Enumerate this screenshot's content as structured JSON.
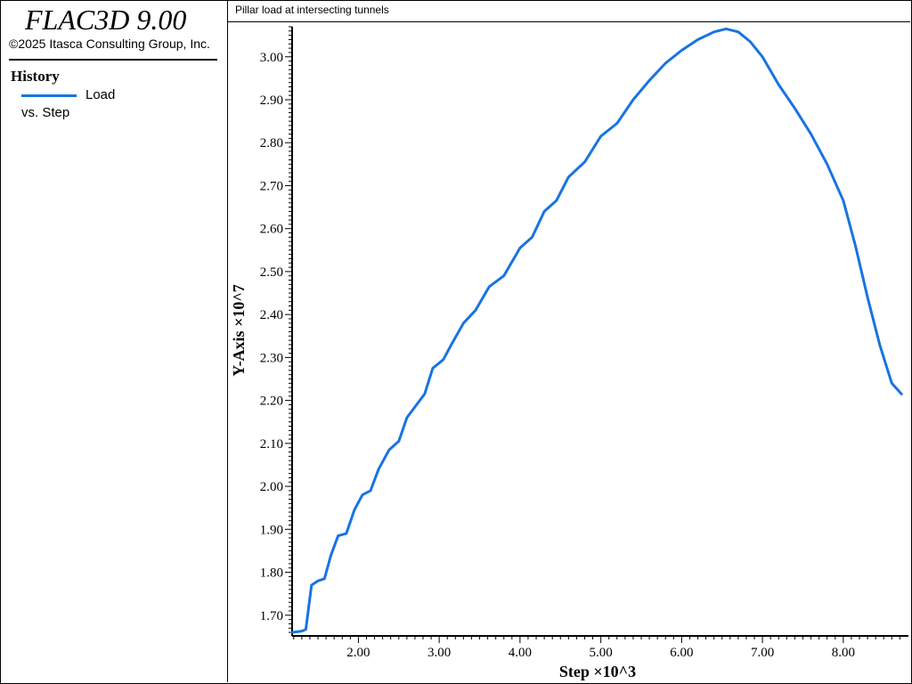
{
  "app": {
    "title": "FLAC3D 9.00",
    "copyright": "©2025 Itasca Consulting Group, Inc."
  },
  "legend": {
    "heading": "History",
    "series_label": "Load",
    "x_label": "vs. Step",
    "color": "#1874e0"
  },
  "chart_data": {
    "type": "line",
    "title": "Pillar load at intersecting tunnels",
    "xlabel": "Step ×10^3",
    "ylabel": "Y-Axis ×10^7",
    "xlim": [
      1.18,
      8.74
    ],
    "ylim": [
      1.656,
      3.07
    ],
    "x_ticks": [
      "2.00",
      "3.00",
      "4.00",
      "5.00",
      "6.00",
      "7.00",
      "8.00"
    ],
    "y_ticks": [
      "1.70",
      "1.80",
      "1.90",
      "2.00",
      "2.10",
      "2.20",
      "2.30",
      "2.40",
      "2.50",
      "2.60",
      "2.70",
      "2.80",
      "2.90",
      "3.00"
    ],
    "grid": false,
    "series": [
      {
        "name": "Load",
        "color": "#1874e0",
        "x": [
          1.18,
          1.3,
          1.35,
          1.42,
          1.5,
          1.58,
          1.66,
          1.75,
          1.85,
          1.95,
          2.05,
          2.15,
          2.25,
          2.38,
          2.5,
          2.6,
          2.7,
          2.82,
          2.92,
          3.05,
          3.15,
          3.3,
          3.45,
          3.62,
          3.8,
          4.0,
          4.15,
          4.3,
          4.45,
          4.6,
          4.8,
          5.0,
          5.2,
          5.4,
          5.6,
          5.8,
          6.0,
          6.2,
          6.4,
          6.55,
          6.7,
          6.85,
          7.0,
          7.2,
          7.4,
          7.6,
          7.8,
          8.0,
          8.15,
          8.3,
          8.45,
          8.6,
          8.72
        ],
        "y": [
          1.66,
          1.663,
          1.667,
          1.77,
          1.78,
          1.785,
          1.84,
          1.885,
          1.89,
          1.945,
          1.98,
          1.99,
          2.04,
          2.085,
          2.105,
          2.16,
          2.185,
          2.215,
          2.275,
          2.295,
          2.33,
          2.38,
          2.41,
          2.465,
          2.49,
          2.555,
          2.58,
          2.64,
          2.665,
          2.72,
          2.755,
          2.815,
          2.845,
          2.9,
          2.945,
          2.985,
          3.015,
          3.04,
          3.058,
          3.065,
          3.058,
          3.035,
          3.0,
          2.935,
          2.88,
          2.82,
          2.75,
          2.665,
          2.56,
          2.44,
          2.33,
          2.24,
          2.215
        ]
      }
    ]
  }
}
